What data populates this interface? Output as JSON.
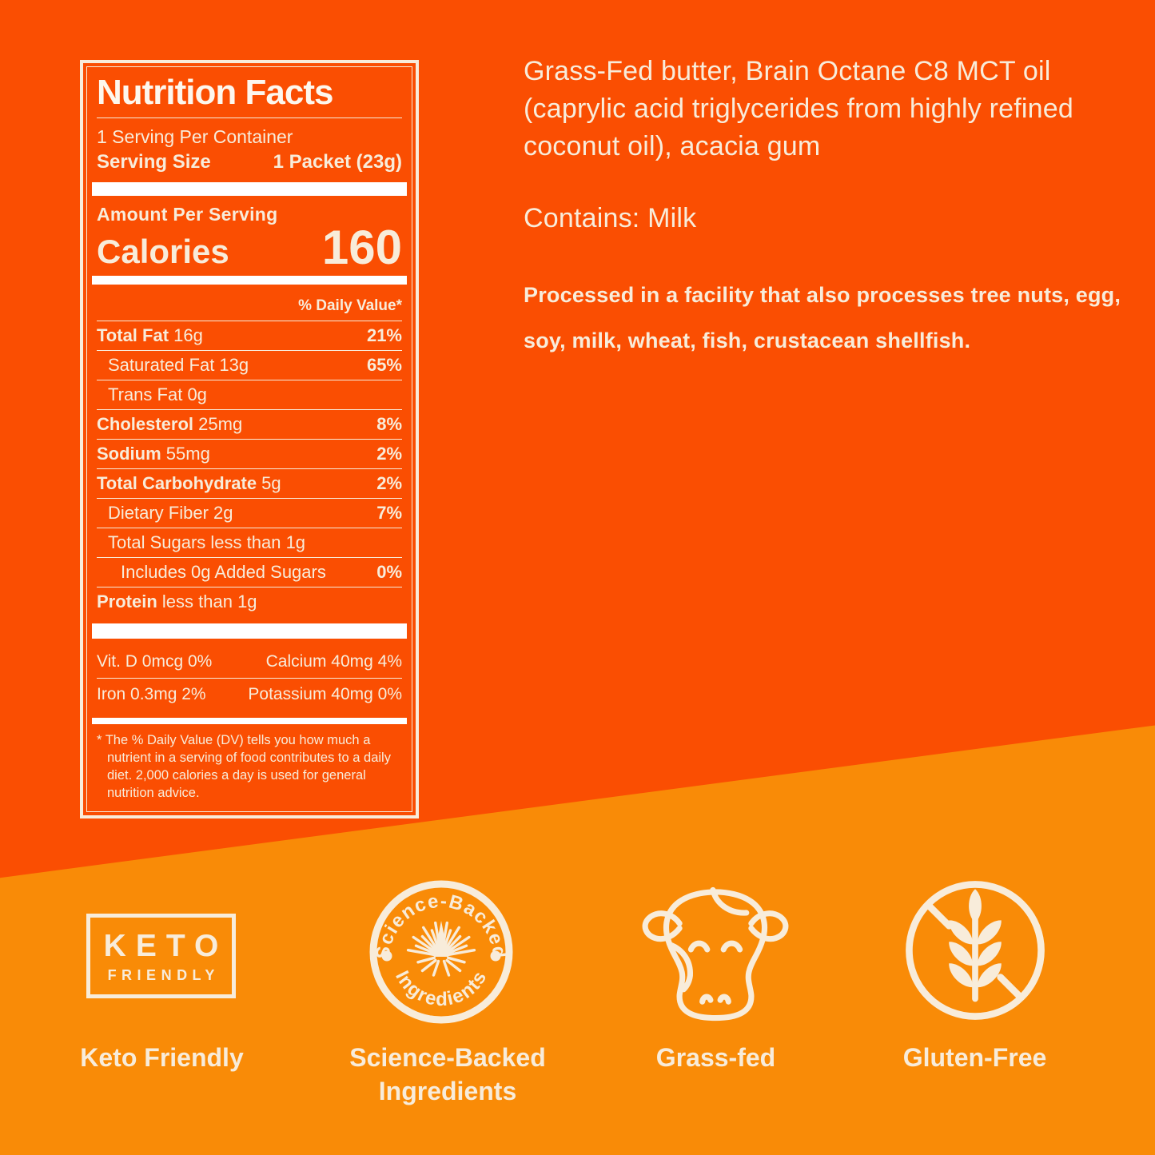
{
  "colors": {
    "background_top": "#fa4e02",
    "background_bottom": "#f98b07",
    "text_cream": "#f8ecda",
    "bar_white": "#ffffff"
  },
  "nutrition_label": {
    "title": "Nutrition Facts",
    "servings_per_container": "1 Serving Per Container",
    "serving_size_label": "Serving Size",
    "serving_size_value": "1 Packet (23g)",
    "amount_per_serving": "Amount Per Serving",
    "calories_label": "Calories",
    "calories_value": "160",
    "daily_value_header": "% Daily Value*",
    "rows": [
      {
        "name": "Total Fat",
        "amount": "16g",
        "dv": "21%",
        "bold": true,
        "indent": 0
      },
      {
        "name": "Saturated Fat",
        "amount": "13g",
        "dv": "65%",
        "bold": false,
        "indent": 1
      },
      {
        "name": "Trans Fat",
        "amount": "0g",
        "dv": "",
        "bold": false,
        "indent": 1
      },
      {
        "name": "Cholesterol",
        "amount": "25mg",
        "dv": "8%",
        "bold": true,
        "indent": 0
      },
      {
        "name": "Sodium",
        "amount": "55mg",
        "dv": "2%",
        "bold": true,
        "indent": 0
      },
      {
        "name": "Total Carbohydrate",
        "amount": "5g",
        "dv": "2%",
        "bold": true,
        "indent": 0
      },
      {
        "name": "Dietary Fiber",
        "amount": "2g",
        "dv": "7%",
        "bold": false,
        "indent": 1
      },
      {
        "name": "Total Sugars",
        "amount": "less than 1g",
        "dv": "",
        "bold": false,
        "indent": 1
      },
      {
        "name": "Includes 0g Added Sugars",
        "amount": "",
        "dv": "0%",
        "bold": false,
        "indent": 2
      },
      {
        "name": "Protein",
        "amount": "less than 1g",
        "dv": "",
        "bold": true,
        "indent": 0
      }
    ],
    "micronutrients": [
      {
        "left": "Vit. D 0mcg 0%",
        "right": "Calcium 40mg 4%"
      },
      {
        "left": "Iron 0.3mg 2%",
        "right": "Potassium 40mg 0%"
      }
    ],
    "footnote": "* The % Daily Value (DV) tells you how much a nutrient in a serving of food contributes to a daily diet. 2,000 calories a day is used for general nutrition advice."
  },
  "ingredients": {
    "text": "Grass-Fed butter, Brain Octane C8 MCT oil (caprylic acid triglycerides from highly refined coconut oil), acacia gum",
    "contains": "Contains: Milk",
    "allergen_notice": "Processed in a facility that also processes tree nuts, egg, soy, milk, wheat, fish, crustacean shellfish."
  },
  "badges": {
    "keto": {
      "box_word1": "KETO",
      "box_word2": "FRIENDLY",
      "caption": "Keto Friendly"
    },
    "science": {
      "ring_top": "Science-Backed",
      "ring_bottom": "Ingredients",
      "caption_line1": "Science-Backed",
      "caption_line2": "Ingredients"
    },
    "grass_fed": {
      "caption": "Grass-fed"
    },
    "gluten_free": {
      "caption": "Gluten-Free"
    }
  }
}
